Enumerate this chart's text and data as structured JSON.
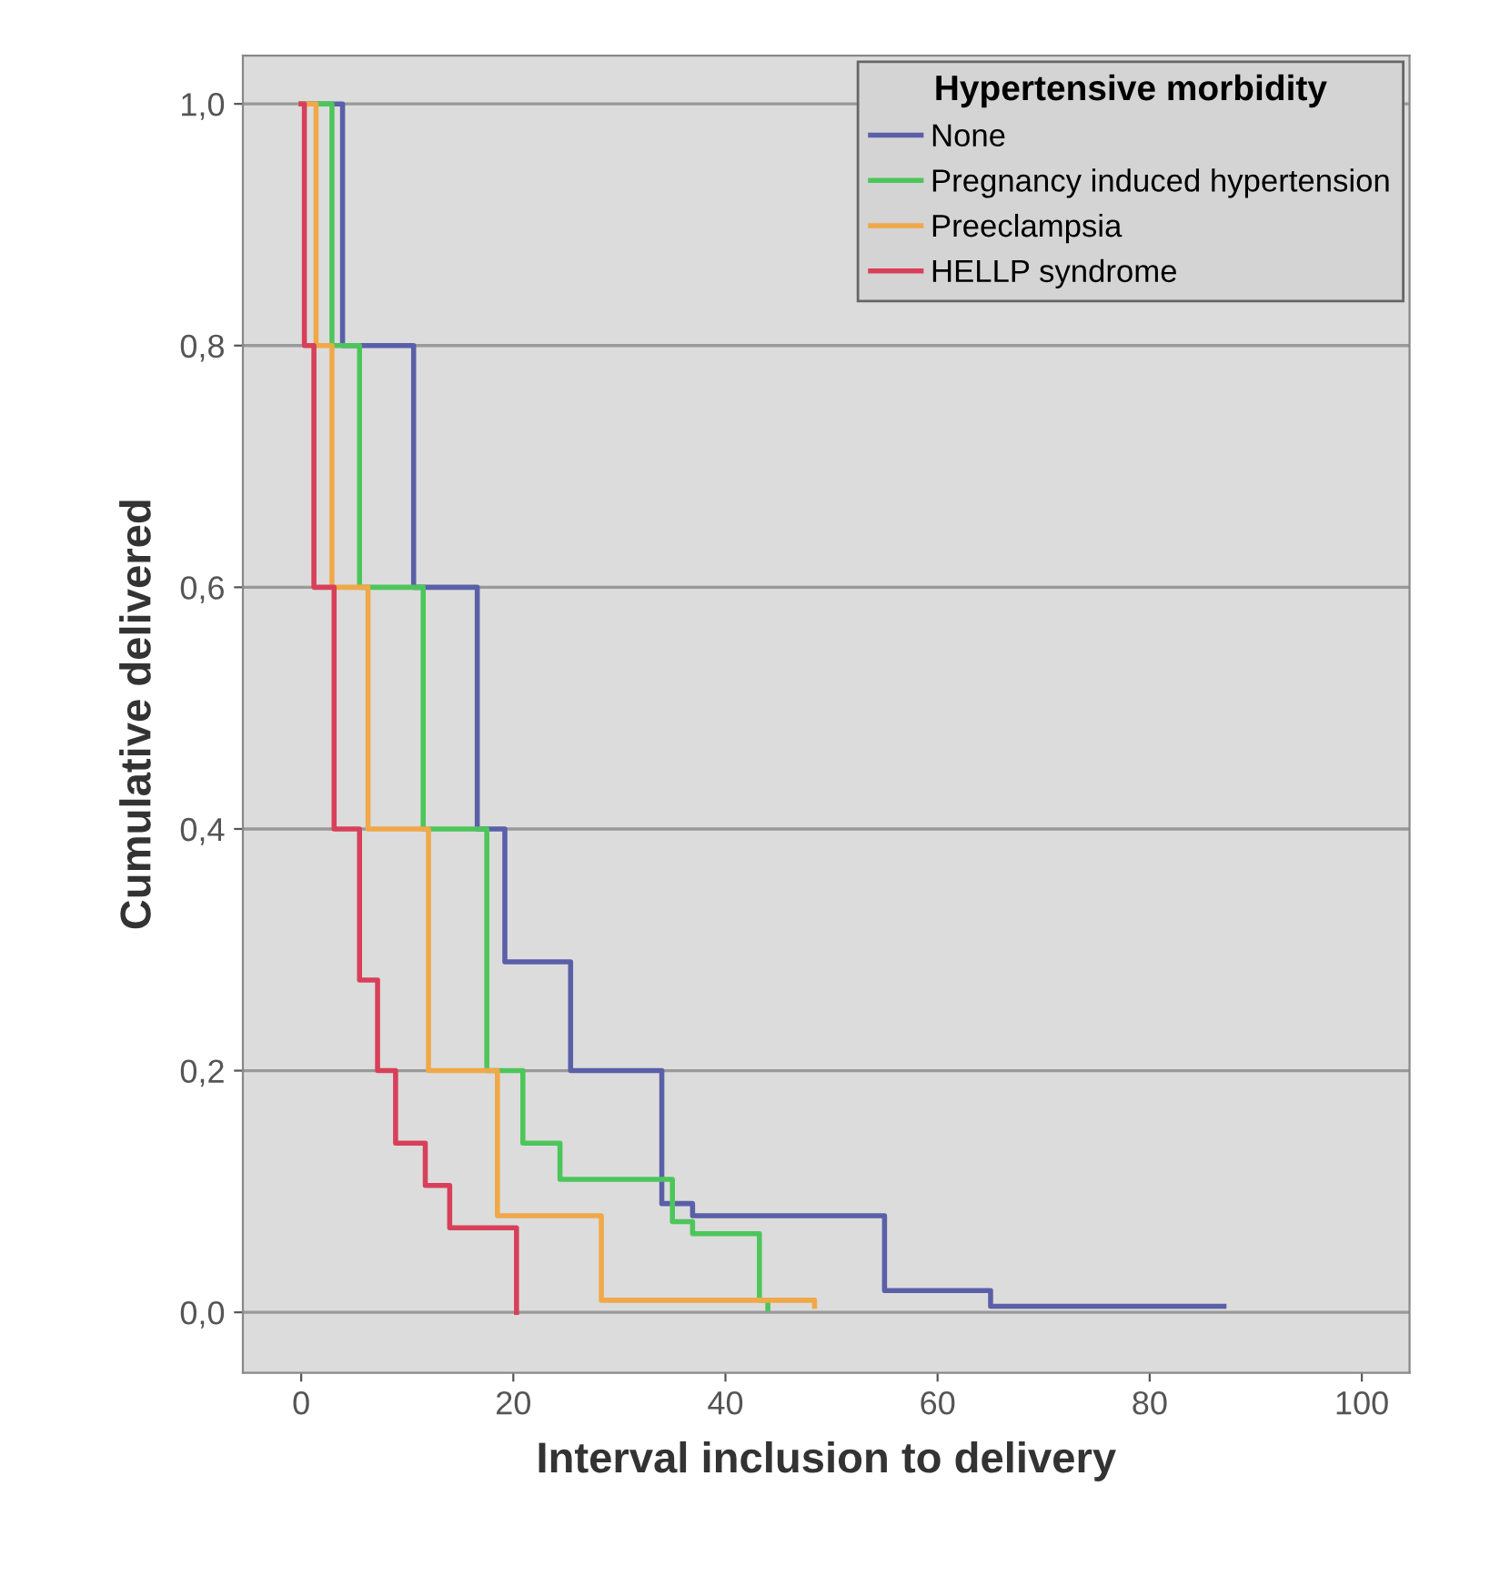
{
  "chart_data": {
    "type": "step",
    "xlabel": "Interval inclusion to delivery",
    "ylabel": "Cumulative delivered",
    "legend_title": "Hypertensive morbidity",
    "xlim": [
      -5.5,
      104.5
    ],
    "ylim": [
      -0.05,
      1.04
    ],
    "xticks": [
      0,
      20,
      40,
      60,
      80,
      100
    ],
    "yticks": [
      {
        "value": 0.0,
        "label": "0,0"
      },
      {
        "value": 0.2,
        "label": "0,2"
      },
      {
        "value": 0.4,
        "label": "0,4"
      },
      {
        "value": 0.6,
        "label": "0,6"
      },
      {
        "value": 0.8,
        "label": "0,8"
      },
      {
        "value": 1.0,
        "label": "1,0"
      }
    ],
    "grid": "y",
    "legend": "top right",
    "series": [
      {
        "name": "None",
        "color": "#5a5fa8",
        "x": [
          0,
          3.9,
          10.6,
          16.6,
          19.2,
          25.4,
          34,
          36.9,
          46,
          55,
          65,
          87
        ],
        "values": [
          1.0,
          0.8,
          0.6,
          0.4,
          0.29,
          0.2,
          0.09,
          0.08,
          0.08,
          0.018,
          0.005,
          0.005
        ]
      },
      {
        "name": "Pregnancy induced hypertension",
        "color": "#4cc65a",
        "x": [
          0,
          2.9,
          5.5,
          11.5,
          17.5,
          20.9,
          24.4,
          30.5,
          35,
          36.9,
          43.2,
          44
        ],
        "values": [
          1.0,
          0.8,
          0.6,
          0.4,
          0.2,
          0.14,
          0.11,
          0.11,
          0.075,
          0.065,
          0.01,
          0.003
        ]
      },
      {
        "name": "Preeclampsia",
        "color": "#f0a848",
        "x": [
          0,
          1.4,
          2.9,
          6.3,
          12,
          18.5,
          28.3,
          48.4
        ],
        "values": [
          1.0,
          0.8,
          0.6,
          0.4,
          0.2,
          0.08,
          0.01,
          0.005
        ]
      },
      {
        "name": "HELLP syndrome",
        "color": "#d8405a",
        "x": [
          0,
          0.3,
          1.2,
          3.1,
          5.5,
          7.2,
          8.9,
          11.7,
          14,
          20.3,
          20.3
        ],
        "values": [
          1.0,
          0.8,
          0.6,
          0.4,
          0.275,
          0.2,
          0.14,
          0.105,
          0.07,
          0.035,
          0.0
        ]
      }
    ]
  }
}
